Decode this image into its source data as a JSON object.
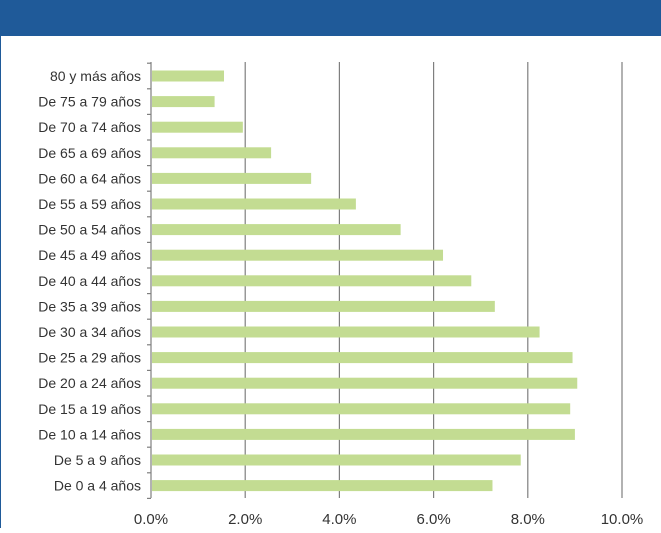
{
  "header": {
    "title": ""
  },
  "chart_data": {
    "type": "bar",
    "orientation": "horizontal",
    "categories": [
      "80 y más años",
      "De 75 a 79 años",
      "De 70 a 74 años",
      "De 65 a 69 años",
      "De 60 a 64 años",
      "De 55 a 59 años",
      "De 50 a 54 años",
      "De 45 a 49 años",
      "De 40 a 44 años",
      "De 35 a 39 años",
      "De 30 a 34 años",
      "De 25 a 29 años",
      "De 20 a 24 años",
      "De 15 a 19 años",
      "De 10 a 14 años",
      "De 5 a 9 años",
      "De 0 a 4 años"
    ],
    "values": [
      1.55,
      1.35,
      1.95,
      2.55,
      3.4,
      4.35,
      5.3,
      6.2,
      6.8,
      7.3,
      8.25,
      8.95,
      9.05,
      8.9,
      9.0,
      7.85,
      7.25
    ],
    "xlim": [
      0,
      10
    ],
    "ticks": [
      "0.0%",
      "2.0%",
      "4.0%",
      "6.0%",
      "8.0%",
      "10.0%"
    ],
    "tick_values": [
      0,
      2,
      4,
      6,
      8,
      10
    ],
    "grid": "vertical",
    "bar_color": "#c3dc92",
    "grid_color": "#7f7f7f",
    "title": "",
    "xlabel": "",
    "ylabel": ""
  }
}
